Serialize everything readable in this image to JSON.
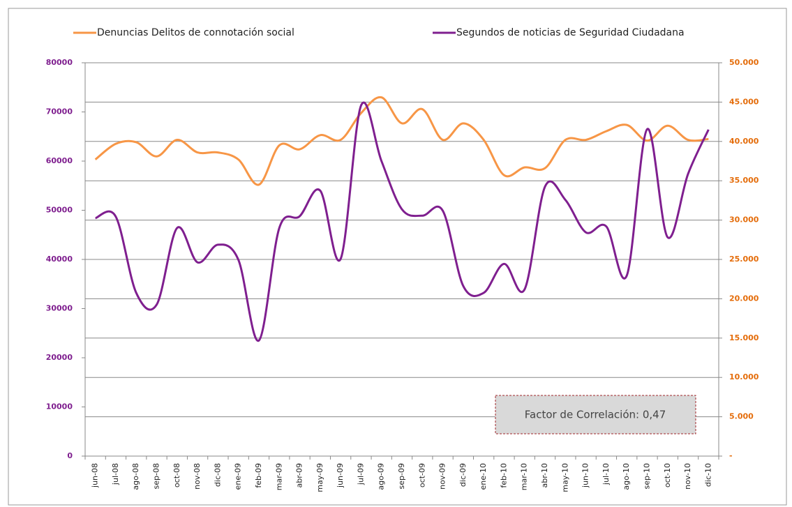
{
  "chart_data": {
    "type": "line",
    "categories": [
      "jun-08",
      "jul-08",
      "ago-08",
      "sep-08",
      "oct-08",
      "nov-08",
      "dic-08",
      "ene-09",
      "feb-09",
      "mar-09",
      "abr-09",
      "may-09",
      "jun-09",
      "jul-09",
      "ago-09",
      "sep-09",
      "oct-09",
      "nov-09",
      "dic-09",
      "ene-10",
      "feb-10",
      "mar-10",
      "abr-10",
      "may-10",
      "jun-10",
      "jul-10",
      "ago-10",
      "sep-10",
      "oct-10",
      "nov-10",
      "dic-10"
    ],
    "series": [
      {
        "name": "Denuncias Delitos de connotación social",
        "color": "#f79646",
        "axis": "y2",
        "values": [
          37700,
          39700,
          39900,
          38100,
          40200,
          38600,
          38600,
          37700,
          34500,
          39500,
          39000,
          40800,
          40200,
          43600,
          45600,
          42300,
          44100,
          40200,
          42300,
          40200,
          35700,
          36700,
          36600,
          40200,
          40200,
          41300,
          42100,
          40100,
          42000,
          40200,
          40300
        ]
      },
      {
        "name": "Segundos de noticias de Seguridad Ciudadana",
        "color": "#7f1f8f",
        "values": [
          48400,
          48700,
          33200,
          30800,
          46400,
          39400,
          43000,
          39900,
          23500,
          46400,
          48800,
          54000,
          40100,
          71300,
          60000,
          50200,
          48900,
          49900,
          34600,
          33200,
          39100,
          33900,
          54800,
          52100,
          45500,
          46700,
          36700,
          66500,
          44500,
          57400,
          66400
        ]
      }
    ],
    "ylim": [
      0,
      80000
    ],
    "yticks": [
      0,
      10000,
      20000,
      30000,
      40000,
      50000,
      60000,
      70000,
      80000
    ],
    "y2lim": [
      0,
      50000
    ],
    "y2ticks": [
      {
        "value": 0,
        "label": "-"
      },
      {
        "value": 5000,
        "label": "5.000"
      },
      {
        "value": 10000,
        "label": "10.000"
      },
      {
        "value": 15000,
        "label": "15.000"
      },
      {
        "value": 20000,
        "label": "20.000"
      },
      {
        "value": 25000,
        "label": "25.000"
      },
      {
        "value": 30000,
        "label": "30.000"
      },
      {
        "value": 35000,
        "label": "35.000"
      },
      {
        "value": 40000,
        "label": "40.000"
      },
      {
        "value": 45000,
        "label": "45.000"
      },
      {
        "value": 50000,
        "label": "50.000"
      }
    ],
    "ytick_color": "#7f1f8f",
    "y2tick_color": "#e46c0a",
    "grid": true,
    "legend": "top",
    "annotation": "Factor de Correlación: 0,47"
  }
}
